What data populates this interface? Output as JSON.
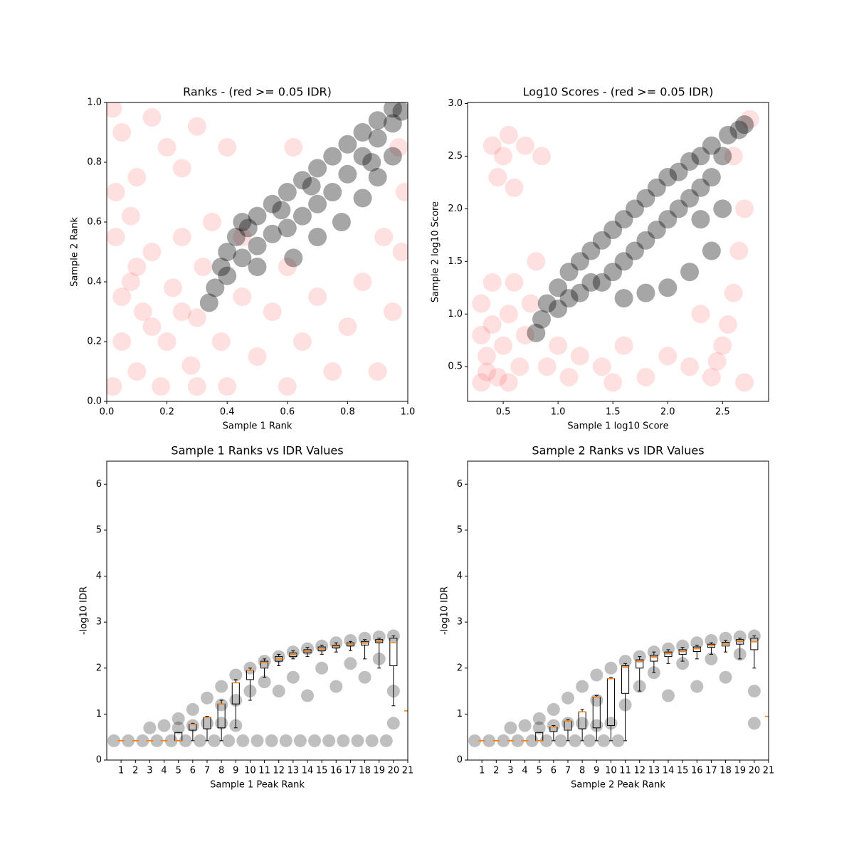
{
  "chart_data": [
    {
      "type": "scatter",
      "title": "Ranks - (red >= 0.05 IDR)",
      "xlabel": "Sample 1 Rank",
      "ylabel": "Sample 2 Rank",
      "xlim": [
        0,
        1
      ],
      "ylim": [
        0,
        1
      ],
      "xticks": [
        {
          "value": 0,
          "label": "0.0"
        },
        {
          "value": 0.2,
          "label": "0.2"
        },
        {
          "value": 0.4,
          "label": "0.4"
        },
        {
          "value": 0.6,
          "label": "0.6"
        },
        {
          "value": 0.8,
          "label": "0.8"
        },
        {
          "value": 1,
          "label": "1.0"
        }
      ],
      "yticks": [
        {
          "value": 0,
          "label": "0.0"
        },
        {
          "value": 0.2,
          "label": "0.2"
        },
        {
          "value": 0.4,
          "label": "0.4"
        },
        {
          "value": 0.6,
          "label": "0.6"
        },
        {
          "value": 0.8,
          "label": "0.8"
        },
        {
          "value": 1,
          "label": "1.0"
        }
      ],
      "series": [
        {
          "color": "#ff0000",
          "x": [
            0.02,
            0.05,
            0.08,
            0.03,
            0.1,
            0.12,
            0.15,
            0.18,
            0.2,
            0.22,
            0.25,
            0.28,
            0.3,
            0.32,
            0.35,
            0.38,
            0.4,
            0.05,
            0.15,
            0.25,
            0.1,
            0.3,
            0.45,
            0.5,
            0.55,
            0.6,
            0.65,
            0.7,
            0.75,
            0.8,
            0.85,
            0.9,
            0.95,
            0.98,
            0.99,
            0.97,
            0.92,
            0.6,
            0.05,
            0.1,
            0.15,
            0.2,
            0.03,
            0.25,
            0.4,
            0.3,
            0.62,
            0.08,
            0.45,
            0.02
          ],
          "y": [
            0.05,
            0.2,
            0.4,
            0.55,
            0.1,
            0.3,
            0.5,
            0.05,
            0.2,
            0.38,
            0.55,
            0.12,
            0.28,
            0.45,
            0.6,
            0.2,
            0.05,
            0.35,
            0.25,
            0.3,
            0.45,
            0.05,
            0.35,
            0.15,
            0.3,
            0.05,
            0.2,
            0.35,
            0.1,
            0.25,
            0.4,
            0.1,
            0.3,
            0.5,
            0.7,
            0.85,
            0.55,
            0.45,
            0.9,
            0.75,
            0.95,
            0.85,
            0.7,
            0.78,
            0.85,
            0.92,
            0.85,
            0.62,
            0.55,
            0.98
          ]
        },
        {
          "color": "#000000",
          "x": [
            0.34,
            0.36,
            0.4,
            0.4,
            0.43,
            0.45,
            0.45,
            0.5,
            0.5,
            0.55,
            0.55,
            0.6,
            0.6,
            0.65,
            0.65,
            0.7,
            0.7,
            0.75,
            0.75,
            0.8,
            0.8,
            0.85,
            0.85,
            0.9,
            0.9,
            0.95,
            0.95,
            0.98,
            0.62,
            0.7,
            0.78,
            0.85,
            0.9,
            0.95,
            0.5,
            0.38,
            0.47,
            0.58,
            0.68,
            0.88
          ],
          "y": [
            0.33,
            0.38,
            0.42,
            0.5,
            0.55,
            0.48,
            0.6,
            0.52,
            0.62,
            0.56,
            0.66,
            0.58,
            0.7,
            0.62,
            0.74,
            0.66,
            0.78,
            0.7,
            0.82,
            0.76,
            0.86,
            0.82,
            0.9,
            0.88,
            0.94,
            0.93,
            0.98,
            0.97,
            0.48,
            0.55,
            0.6,
            0.68,
            0.75,
            0.82,
            0.45,
            0.45,
            0.58,
            0.64,
            0.72,
            0.8
          ]
        }
      ]
    },
    {
      "type": "scatter",
      "title": "Log10 Scores - (red >= 0.05 IDR)",
      "xlabel": "Sample 1 log10 Score",
      "ylabel": "Sample 2 log10 Score",
      "xlim": [
        0.175,
        2.92
      ],
      "ylim": [
        0.17,
        3.01
      ],
      "xticks": [
        0.5,
        {
          "value": 1,
          "label": "1.0"
        },
        1.5,
        {
          "value": 2,
          "label": "2.0"
        },
        2.5
      ],
      "yticks": [
        0.5,
        {
          "value": 1,
          "label": "1.0"
        },
        1.5,
        {
          "value": 2,
          "label": "2.0"
        },
        2.5,
        {
          "value": 3,
          "label": "3.0"
        }
      ],
      "series": [
        {
          "color": "#ff0000",
          "x": [
            0.3,
            0.35,
            0.4,
            0.3,
            0.45,
            0.5,
            0.55,
            0.6,
            0.65,
            0.7,
            0.75,
            0.8,
            0.4,
            0.35,
            0.55,
            0.9,
            1.0,
            1.1,
            1.2,
            1.4,
            1.6,
            1.8,
            2.0,
            2.2,
            2.4,
            2.5,
            2.55,
            2.6,
            2.65,
            2.7,
            2.6,
            2.45,
            2.3,
            0.4,
            0.5,
            0.55,
            0.45,
            0.7,
            0.6,
            0.85,
            2.75,
            0.3,
            1.5,
            2.7
          ],
          "y": [
            0.35,
            0.6,
            0.9,
            1.1,
            0.4,
            0.7,
            1.0,
            1.3,
            0.5,
            0.8,
            1.1,
            1.5,
            1.3,
            0.45,
            0.35,
            0.5,
            0.7,
            0.4,
            0.6,
            0.5,
            0.7,
            0.4,
            0.6,
            0.5,
            0.4,
            0.7,
            0.9,
            1.2,
            1.6,
            2.0,
            2.5,
            0.55,
            1.0,
            2.6,
            2.5,
            2.7,
            2.3,
            2.6,
            2.2,
            2.5,
            2.85,
            0.8,
            0.35,
            0.35
          ]
        },
        {
          "color": "#000000",
          "x": [
            0.8,
            0.85,
            0.9,
            1.0,
            1.0,
            1.1,
            1.1,
            1.2,
            1.2,
            1.3,
            1.3,
            1.4,
            1.4,
            1.5,
            1.5,
            1.6,
            1.6,
            1.7,
            1.7,
            1.8,
            1.8,
            1.9,
            1.9,
            2.0,
            2.0,
            2.1,
            2.1,
            2.2,
            2.2,
            2.3,
            2.3,
            2.4,
            2.4,
            2.5,
            2.55,
            2.65,
            2.7,
            1.8,
            2.0,
            2.2,
            2.4,
            2.5,
            1.6,
            2.3
          ],
          "y": [
            0.82,
            0.95,
            1.1,
            1.05,
            1.25,
            1.15,
            1.4,
            1.2,
            1.5,
            1.3,
            1.6,
            1.3,
            1.7,
            1.4,
            1.8,
            1.5,
            1.9,
            1.6,
            2.0,
            1.7,
            2.1,
            1.8,
            2.2,
            1.9,
            2.3,
            2.0,
            2.35,
            2.1,
            2.45,
            2.2,
            2.5,
            2.3,
            2.6,
            2.5,
            2.7,
            2.75,
            2.8,
            1.2,
            1.25,
            1.4,
            1.6,
            2.0,
            1.15,
            1.9
          ]
        }
      ]
    },
    {
      "type": "box",
      "title": "Sample 1 Ranks vs IDR Values",
      "xlabel": "Sample 1 Peak Rank",
      "ylabel": "-log10 IDR",
      "xlim": [
        0,
        21
      ],
      "ylim": [
        0,
        6.5
      ],
      "xticks": [
        1,
        2,
        3,
        4,
        5,
        6,
        7,
        8,
        9,
        10,
        11,
        12,
        13,
        14,
        15,
        16,
        17,
        18,
        19,
        20,
        21
      ],
      "yticks": [
        0,
        1,
        2,
        3,
        4,
        5,
        6
      ],
      "points": {
        "color": "#000000",
        "x": [
          0.5,
          1.5,
          2.5,
          3.5,
          4.5,
          5.5,
          6.5,
          7.5,
          8.5,
          9.5,
          10.5,
          11.5,
          12.5,
          13.5,
          14.5,
          15.5,
          16.5,
          17.5,
          18.5,
          19.5,
          3,
          4,
          5,
          5,
          6,
          6,
          7,
          7,
          8,
          8,
          8,
          9,
          9,
          9,
          10,
          10,
          11,
          11,
          12,
          12,
          13,
          13,
          14,
          14,
          15,
          15,
          16,
          16,
          17,
          17,
          18,
          18,
          19,
          19,
          20,
          20,
          20
        ],
        "y": [
          0.42,
          0.42,
          0.42,
          0.42,
          0.42,
          0.42,
          0.42,
          0.42,
          0.42,
          0.42,
          0.42,
          0.42,
          0.42,
          0.42,
          0.42,
          0.42,
          0.42,
          0.42,
          0.42,
          0.42,
          0.7,
          0.75,
          0.9,
          0.7,
          1.1,
          0.75,
          1.35,
          0.8,
          1.6,
          0.8,
          1.2,
          1.85,
          1.3,
          0.75,
          2.0,
          1.5,
          2.15,
          1.7,
          2.25,
          1.5,
          2.35,
          1.8,
          2.42,
          1.4,
          2.48,
          2.0,
          2.55,
          1.6,
          2.6,
          2.1,
          2.65,
          1.8,
          2.68,
          2.2,
          2.7,
          1.5,
          0.8
        ]
      },
      "boxes": {
        "color": "#ff7f0e",
        "positions": [
          1,
          2,
          3,
          4,
          5,
          6,
          7,
          8,
          9,
          10,
          11,
          12,
          13,
          14,
          15,
          16,
          17,
          18,
          19,
          20,
          21
        ],
        "median": [
          0.42,
          0.42,
          0.42,
          0.42,
          0.42,
          0.78,
          0.93,
          1.22,
          1.68,
          1.95,
          2.12,
          2.2,
          2.3,
          2.36,
          2.42,
          2.48,
          2.52,
          2.55,
          2.58,
          2.55,
          1.07
        ],
        "q1": [
          0.42,
          0.42,
          0.42,
          0.42,
          0.42,
          0.65,
          0.68,
          0.7,
          1.22,
          1.75,
          2.0,
          2.15,
          2.25,
          2.33,
          2.38,
          2.44,
          2.48,
          2.5,
          2.55,
          2.05,
          1.07
        ],
        "q3": [
          0.42,
          0.42,
          0.42,
          0.42,
          0.6,
          0.78,
          0.93,
          1.22,
          1.68,
          1.95,
          2.15,
          2.25,
          2.33,
          2.4,
          2.46,
          2.5,
          2.55,
          2.58,
          2.62,
          2.65,
          1.07
        ],
        "low": [
          0.42,
          0.42,
          0.42,
          0.42,
          0.42,
          0.42,
          0.42,
          0.42,
          0.7,
          1.3,
          1.8,
          2.05,
          2.2,
          2.25,
          2.3,
          2.35,
          2.38,
          2.2,
          2.0,
          1.18,
          1.07
        ],
        "high": [
          0.42,
          0.42,
          0.42,
          0.42,
          0.6,
          0.8,
          0.95,
          1.3,
          1.75,
          2.0,
          2.2,
          2.3,
          2.38,
          2.45,
          2.5,
          2.55,
          2.58,
          2.62,
          2.65,
          2.7,
          1.07
        ]
      }
    },
    {
      "type": "box",
      "title": "Sample 2 Ranks vs IDR Values",
      "xlabel": "Sample 2 Peak Rank",
      "ylabel": "-log10 IDR",
      "xlim": [
        0,
        21
      ],
      "ylim": [
        0,
        6.5
      ],
      "xticks": [
        1,
        2,
        3,
        4,
        5,
        6,
        7,
        8,
        9,
        10,
        11,
        12,
        13,
        14,
        15,
        16,
        17,
        18,
        19,
        20,
        21
      ],
      "yticks": [
        0,
        1,
        2,
        3,
        4,
        5,
        6
      ],
      "points": {
        "color": "#000000",
        "x": [
          0.5,
          1.5,
          2.5,
          3.5,
          4.5,
          5.5,
          6.5,
          7.5,
          8.5,
          9.5,
          10.5,
          3,
          4,
          5,
          5,
          6,
          6,
          7,
          7,
          8,
          8,
          9,
          9,
          9,
          10,
          10,
          11,
          11,
          12,
          12,
          13,
          13,
          14,
          14,
          15,
          15,
          16,
          16,
          17,
          17,
          18,
          18,
          19,
          19,
          20,
          20,
          20
        ],
        "y": [
          0.42,
          0.42,
          0.42,
          0.42,
          0.42,
          0.42,
          0.42,
          0.42,
          0.42,
          0.42,
          0.42,
          0.7,
          0.75,
          0.9,
          0.7,
          1.1,
          0.75,
          1.35,
          0.8,
          1.6,
          0.8,
          1.85,
          1.3,
          0.75,
          2.0,
          0.8,
          2.15,
          1.2,
          2.25,
          1.6,
          2.35,
          1.9,
          2.42,
          1.4,
          2.48,
          2.1,
          2.55,
          1.6,
          2.6,
          2.2,
          2.65,
          1.8,
          2.68,
          2.3,
          2.7,
          1.5,
          0.8
        ]
      },
      "boxes": {
        "color": "#ff7f0e",
        "positions": [
          1,
          2,
          3,
          4,
          5,
          6,
          7,
          8,
          9,
          10,
          11,
          12,
          13,
          14,
          15,
          16,
          17,
          18,
          19,
          20,
          21
        ],
        "median": [
          0.42,
          0.42,
          0.42,
          0.42,
          0.42,
          0.72,
          0.85,
          1.05,
          1.37,
          1.77,
          2.02,
          2.15,
          2.25,
          2.32,
          2.36,
          2.42,
          2.5,
          2.52,
          2.58,
          2.57,
          0.95
        ],
        "q1": [
          0.42,
          0.42,
          0.42,
          0.42,
          0.42,
          0.62,
          0.65,
          0.68,
          0.7,
          0.75,
          1.45,
          2.0,
          2.15,
          2.25,
          2.3,
          2.36,
          2.45,
          2.48,
          2.52,
          2.4,
          0.95
        ],
        "q3": [
          0.42,
          0.42,
          0.42,
          0.42,
          0.6,
          0.72,
          0.85,
          1.05,
          1.37,
          1.77,
          2.05,
          2.18,
          2.28,
          2.35,
          2.4,
          2.46,
          2.52,
          2.56,
          2.62,
          2.65,
          0.95
        ],
        "low": [
          0.42,
          0.42,
          0.42,
          0.42,
          0.42,
          0.42,
          0.42,
          0.42,
          0.42,
          0.42,
          0.42,
          1.5,
          1.9,
          2.1,
          2.15,
          2.2,
          2.3,
          2.35,
          2.2,
          2.0,
          0.95
        ],
        "high": [
          0.42,
          0.42,
          0.42,
          0.42,
          0.6,
          0.75,
          0.88,
          1.1,
          1.4,
          1.8,
          2.1,
          2.25,
          2.35,
          2.4,
          2.45,
          2.5,
          2.55,
          2.6,
          2.65,
          2.7,
          0.95
        ]
      }
    }
  ]
}
